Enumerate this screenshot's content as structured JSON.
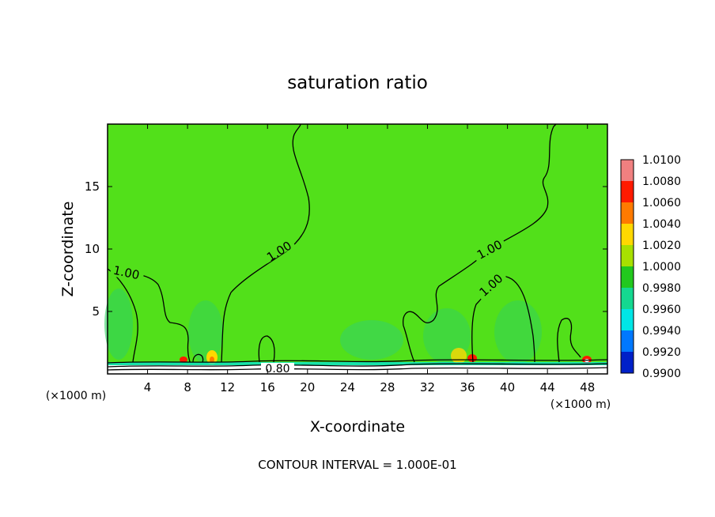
{
  "chart_data": {
    "type": "heatmap",
    "title": "saturation ratio",
    "xlabel": "X-coordinate",
    "ylabel": "Z-coordinate",
    "x_unit": "(×1000 m)",
    "xlim": [
      0,
      50
    ],
    "ylim": [
      0,
      20
    ],
    "x_ticks": [
      "4",
      "8",
      "12",
      "16",
      "20",
      "24",
      "28",
      "32",
      "36",
      "40",
      "44",
      "48"
    ],
    "y_ticks": [
      "5",
      "10",
      "15"
    ],
    "footer": "CONTOUR INTERVAL = 1.000E-01",
    "contour_labels": [
      "1.00",
      "1.00",
      "1.00",
      "1.00",
      "0.80"
    ],
    "colorbar": {
      "levels": [
        "1.0100",
        "1.0080",
        "1.0060",
        "1.0040",
        "1.0020",
        "1.0000",
        "0.9980",
        "0.9960",
        "0.9940",
        "0.9920",
        "0.9900"
      ],
      "colors": [
        "#f08080",
        "#ff1a00",
        "#ff7a00",
        "#ffd800",
        "#a8e000",
        "#22c81e",
        "#14d890",
        "#00e6e6",
        "#0078ff",
        "#0020c8",
        "#7a00b8"
      ]
    },
    "background_color": "#52e01a",
    "grid": false
  }
}
